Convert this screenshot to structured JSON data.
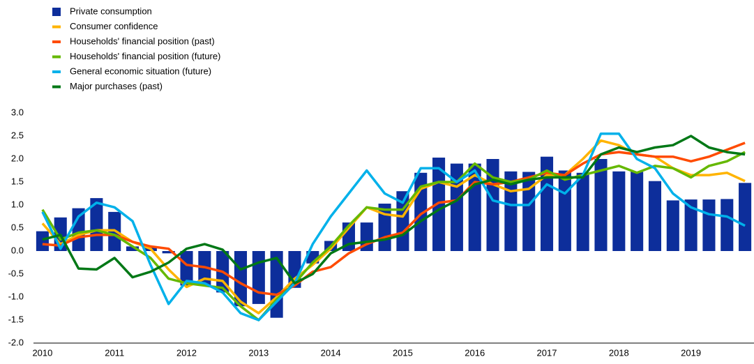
{
  "chart_data": {
    "type": "bar-line",
    "categories": [
      "2010",
      null,
      null,
      null,
      "2011",
      null,
      null,
      null,
      "2012",
      null,
      null,
      null,
      "2013",
      null,
      null,
      null,
      "2014",
      null,
      null,
      null,
      "2015",
      null,
      null,
      null,
      "2016",
      null,
      null,
      null,
      "2017",
      null,
      null,
      null,
      "2018",
      null,
      null,
      null,
      "2019",
      null,
      null,
      null
    ],
    "ylim": [
      -2,
      3
    ],
    "yticks": [
      {
        "value": -2,
        "label": "-2.0"
      },
      {
        "value": -1.5,
        "label": "-1.5"
      },
      {
        "value": -1,
        "label": "-1.0"
      },
      {
        "value": -0.5,
        "label": "-0.5"
      },
      {
        "value": 0,
        "label": "0.0"
      },
      {
        "value": 0.5,
        "label": "0.5"
      },
      {
        "value": 1,
        "label": "1.0"
      },
      {
        "value": 1.5,
        "label": "1.5"
      },
      {
        "value": 2,
        "label": "2.0"
      },
      {
        "value": 2.5,
        "label": "2.5"
      },
      {
        "value": 3,
        "label": "3.0"
      }
    ],
    "legend": "top-left",
    "series": [
      {
        "name": "Private consumption",
        "type": "bar",
        "color": "#0d2e9b",
        "values": [
          0.43,
          0.73,
          0.93,
          1.15,
          0.85,
          0.1,
          0.1,
          -0.05,
          -0.75,
          -0.75,
          -0.9,
          -1.2,
          -1.15,
          -1.45,
          -0.8,
          -0.27,
          0.22,
          0.62,
          0.62,
          1.03,
          1.3,
          1.7,
          2.03,
          1.9,
          1.9,
          2.0,
          1.73,
          1.72,
          2.05,
          1.75,
          1.7,
          2.0,
          1.73,
          1.72,
          1.52,
          1.1,
          1.12,
          1.12,
          1.13,
          1.48
        ]
      },
      {
        "name": "Consumer confidence",
        "type": "line",
        "color": "#ffb400",
        "values": [
          0.6,
          0.15,
          0.35,
          0.45,
          0.45,
          0.2,
          0.05,
          -0.4,
          -0.78,
          -0.6,
          -0.65,
          -1.1,
          -1.35,
          -1.0,
          -0.6,
          -0.3,
          0.05,
          0.5,
          0.95,
          0.8,
          0.75,
          1.35,
          1.5,
          1.4,
          1.65,
          1.45,
          1.3,
          1.35,
          1.65,
          1.65,
          2.0,
          2.4,
          2.3,
          2.1,
          2.05,
          1.8,
          1.65,
          1.65,
          1.7,
          1.52
        ]
      },
      {
        "name": "Households' financial position (past)",
        "type": "line",
        "color": "#ff4b00",
        "values": [
          0.15,
          0.12,
          0.3,
          0.35,
          0.35,
          0.2,
          0.1,
          0.05,
          -0.3,
          -0.35,
          -0.45,
          -0.7,
          -0.9,
          -0.95,
          -0.75,
          -0.45,
          -0.35,
          -0.05,
          0.15,
          0.3,
          0.4,
          0.8,
          1.05,
          1.1,
          1.5,
          1.45,
          1.5,
          1.6,
          1.7,
          1.65,
          1.9,
          2.1,
          2.15,
          2.1,
          2.05,
          2.05,
          1.95,
          2.05,
          2.2,
          2.35
        ]
      },
      {
        "name": "Households' financial position (future)",
        "type": "line",
        "color": "#65b800",
        "values": [
          0.9,
          0.25,
          0.4,
          0.45,
          0.35,
          0.1,
          -0.15,
          -0.6,
          -0.7,
          -0.75,
          -0.8,
          -1.2,
          -1.5,
          -1.05,
          -0.7,
          -0.25,
          0.1,
          0.55,
          0.95,
          0.9,
          0.9,
          1.4,
          1.5,
          1.5,
          1.9,
          1.6,
          1.5,
          1.55,
          1.75,
          1.55,
          1.65,
          1.75,
          1.85,
          1.7,
          1.85,
          1.8,
          1.6,
          1.85,
          1.95,
          2.15
        ]
      },
      {
        "name": "General economic situation (future)",
        "type": "line",
        "color": "#00b1ea",
        "values": [
          0.85,
          0.05,
          0.75,
          1.05,
          0.95,
          0.65,
          -0.3,
          -1.15,
          -0.65,
          -0.7,
          -0.9,
          -1.35,
          -1.5,
          -1.1,
          -0.7,
          0.15,
          0.75,
          1.25,
          1.75,
          1.25,
          1.05,
          1.8,
          1.8,
          1.5,
          1.75,
          1.1,
          1.0,
          1.0,
          1.45,
          1.25,
          1.65,
          2.55,
          2.55,
          2.0,
          1.8,
          1.25,
          0.95,
          0.8,
          0.75,
          0.55
        ]
      },
      {
        "name": "Major purchases (past)",
        "type": "line",
        "color": "#007816",
        "values": [
          0.25,
          0.35,
          -0.38,
          -0.4,
          -0.15,
          -0.57,
          -0.45,
          -0.25,
          0.05,
          0.15,
          0.03,
          -0.4,
          -0.25,
          -0.15,
          -0.7,
          -0.5,
          -0.05,
          0.15,
          0.2,
          0.25,
          0.35,
          0.65,
          0.9,
          1.1,
          1.45,
          1.55,
          1.45,
          1.55,
          1.6,
          1.6,
          1.6,
          2.1,
          2.25,
          2.15,
          2.25,
          2.3,
          2.5,
          2.25,
          2.15,
          2.1
        ]
      }
    ]
  }
}
